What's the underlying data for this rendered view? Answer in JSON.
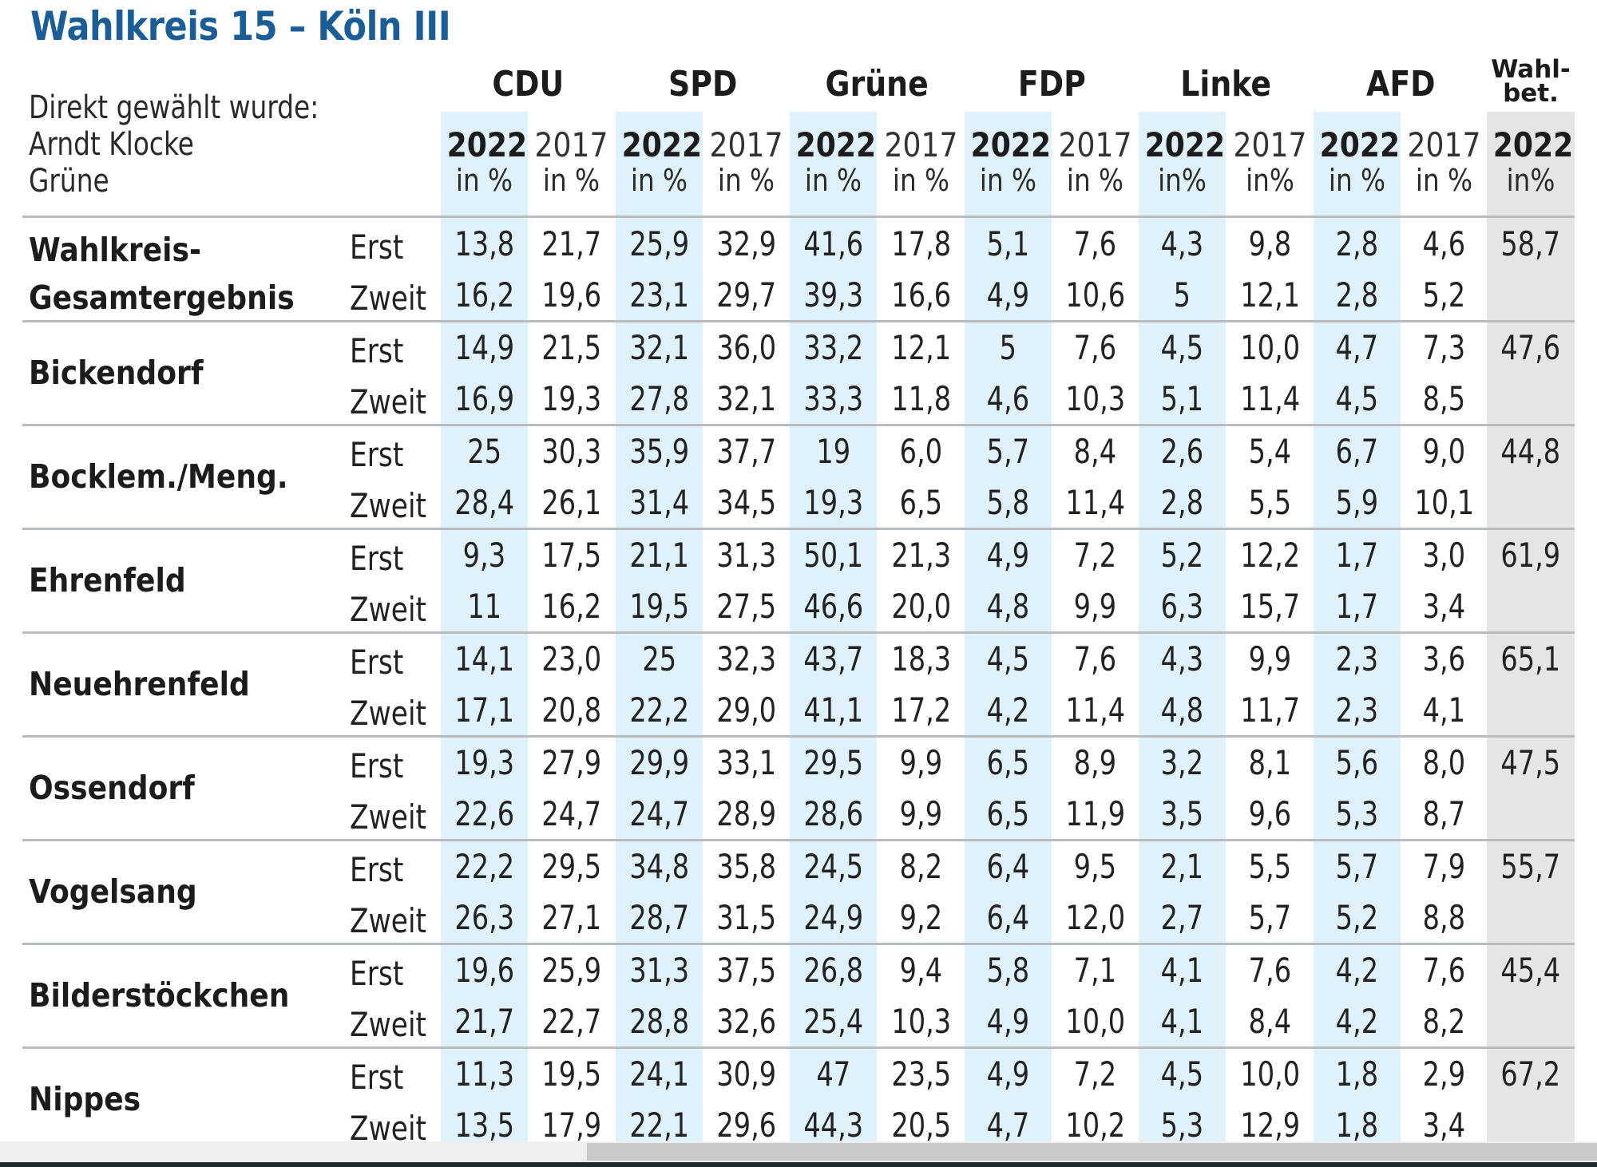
{
  "title": "Wahlkreis 15 – Köln III",
  "elected": {
    "label": "Direkt gewählt wurde:",
    "name": "Arndt Klocke",
    "party": "Grüne"
  },
  "colors": {
    "title": "#1b5e97",
    "highlight_2022": "#dff1fa",
    "turnout_column": "#e4e5e6",
    "divider": "#b8bcbf"
  },
  "header": {
    "parties": [
      "CDU",
      "SPD",
      "Grüne",
      "FDP",
      "Linke",
      "AFD"
    ],
    "turnout_line1": "Wahl-",
    "turnout_line2": "bet.",
    "columns": [
      {
        "year": "2022",
        "unit": "in %"
      },
      {
        "year": "2017",
        "unit": "in %"
      },
      {
        "year": "2022",
        "unit": "in %"
      },
      {
        "year": "2017",
        "unit": "in %"
      },
      {
        "year": "2022",
        "unit": "in %"
      },
      {
        "year": "2017",
        "unit": "in %"
      },
      {
        "year": "2022",
        "unit": "in %"
      },
      {
        "year": "2017",
        "unit": "in %"
      },
      {
        "year": "2022",
        "unit": "in%"
      },
      {
        "year": "2017",
        "unit": "in%"
      },
      {
        "year": "2022",
        "unit": "in %"
      },
      {
        "year": "2017",
        "unit": "in %"
      },
      {
        "year": "2022",
        "unit": "in%"
      }
    ]
  },
  "vote_labels": {
    "erst": "Erst",
    "zweit": "Zweit"
  },
  "rows": [
    {
      "name": "Wahlkreis-",
      "name2": "Gesamtergebnis",
      "erst": [
        "13,8",
        "21,7",
        "25,9",
        "32,9",
        "41,6",
        "17,8",
        "5,1",
        "7,6",
        "4,3",
        "9,8",
        "2,8",
        "4,6"
      ],
      "zweit": [
        "16,2",
        "19,6",
        "23,1",
        "29,7",
        "39,3",
        "16,6",
        "4,9",
        "10,6",
        "5",
        "12,1",
        "2,8",
        "5,2"
      ],
      "turnout": "58,7"
    },
    {
      "name": "Bickendorf",
      "name2": "",
      "erst": [
        "14,9",
        "21,5",
        "32,1",
        "36,0",
        "33,2",
        "12,1",
        "5",
        "7,6",
        "4,5",
        "10,0",
        "4,7",
        "7,3"
      ],
      "zweit": [
        "16,9",
        "19,3",
        "27,8",
        "32,1",
        "33,3",
        "11,8",
        "4,6",
        "10,3",
        "5,1",
        "11,4",
        "4,5",
        "8,5"
      ],
      "turnout": "47,6"
    },
    {
      "name": "Bocklem./Meng.",
      "name2": "",
      "erst": [
        "25",
        "30,3",
        "35,9",
        "37,7",
        "19",
        "6,0",
        "5,7",
        "8,4",
        "2,6",
        "5,4",
        "6,7",
        "9,0"
      ],
      "zweit": [
        "28,4",
        "26,1",
        "31,4",
        "34,5",
        "19,3",
        "6,5",
        "5,8",
        "11,4",
        "2,8",
        "5,5",
        "5,9",
        "10,1"
      ],
      "turnout": "44,8"
    },
    {
      "name": "Ehrenfeld",
      "name2": "",
      "erst": [
        "9,3",
        "17,5",
        "21,1",
        "31,3",
        "50,1",
        "21,3",
        "4,9",
        "7,2",
        "5,2",
        "12,2",
        "1,7",
        "3,0"
      ],
      "zweit": [
        "11",
        "16,2",
        "19,5",
        "27,5",
        "46,6",
        "20,0",
        "4,8",
        "9,9",
        "6,3",
        "15,7",
        "1,7",
        "3,4"
      ],
      "turnout": "61,9"
    },
    {
      "name": "Neuehrenfeld",
      "name2": "",
      "erst": [
        "14,1",
        "23,0",
        "25",
        "32,3",
        "43,7",
        "18,3",
        "4,5",
        "7,6",
        "4,3",
        "9,9",
        "2,3",
        "3,6"
      ],
      "zweit": [
        "17,1",
        "20,8",
        "22,2",
        "29,0",
        "41,1",
        "17,2",
        "4,2",
        "11,4",
        "4,8",
        "11,7",
        "2,3",
        "4,1"
      ],
      "turnout": "65,1"
    },
    {
      "name": "Ossendorf",
      "name2": "",
      "erst": [
        "19,3",
        "27,9",
        "29,9",
        "33,1",
        "29,5",
        "9,9",
        "6,5",
        "8,9",
        "3,2",
        "8,1",
        "5,6",
        "8,0"
      ],
      "zweit": [
        "22,6",
        "24,7",
        "24,7",
        "28,9",
        "28,6",
        "9,9",
        "6,5",
        "11,9",
        "3,5",
        "9,6",
        "5,3",
        "8,7"
      ],
      "turnout": "47,5"
    },
    {
      "name": "Vogelsang",
      "name2": "",
      "erst": [
        "22,2",
        "29,5",
        "34,8",
        "35,8",
        "24,5",
        "8,2",
        "6,4",
        "9,5",
        "2,1",
        "5,5",
        "5,7",
        "7,9"
      ],
      "zweit": [
        "26,3",
        "27,1",
        "28,7",
        "31,5",
        "24,9",
        "9,2",
        "6,4",
        "12,0",
        "2,7",
        "5,7",
        "5,2",
        "8,8"
      ],
      "turnout": "55,7"
    },
    {
      "name": "Bilderstöckchen",
      "name2": "",
      "erst": [
        "19,6",
        "25,9",
        "31,3",
        "37,5",
        "26,8",
        "9,4",
        "5,8",
        "7,1",
        "4,1",
        "7,6",
        "4,2",
        "7,6"
      ],
      "zweit": [
        "21,7",
        "22,7",
        "28,8",
        "32,6",
        "25,4",
        "10,3",
        "4,9",
        "10,0",
        "4,1",
        "8,4",
        "4,2",
        "8,2"
      ],
      "turnout": "45,4"
    },
    {
      "name": "Nippes",
      "name2": "",
      "erst": [
        "11,3",
        "19,5",
        "24,1",
        "30,9",
        "47",
        "23,5",
        "4,9",
        "7,2",
        "4,5",
        "10,0",
        "1,8",
        "2,9"
      ],
      "zweit": [
        "13,5",
        "17,9",
        "22,1",
        "29,6",
        "44,3",
        "20,5",
        "4,7",
        "10,2",
        "5,3",
        "12,9",
        "1,8",
        "3,4"
      ],
      "turnout": "67,2"
    }
  ]
}
